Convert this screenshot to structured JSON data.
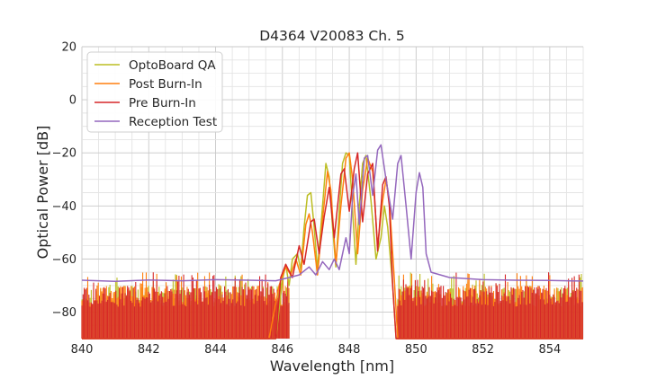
{
  "chart_data": {
    "type": "line",
    "title": "D4364 V20083 Ch. 5",
    "xlabel": "Wavelength [nm]",
    "ylabel": "Optical Power [dB]",
    "xlim": [
      840,
      855
    ],
    "ylim": [
      -90,
      20
    ],
    "xticks": [
      "840",
      "842",
      "844",
      "846",
      "848",
      "850",
      "852",
      "854"
    ],
    "yticks": [
      "20",
      "0",
      "−20",
      "−40",
      "−60",
      "−80"
    ],
    "grid": true,
    "legend_position": "top-left",
    "series": [
      {
        "name": "OptoBoard QA",
        "color": "#bcbd22",
        "noise_floor": true,
        "points": [
          [
            840,
            -90
          ],
          [
            845.8,
            -90
          ],
          [
            846.0,
            -68
          ],
          [
            846.1,
            -62
          ],
          [
            846.2,
            -70
          ],
          [
            846.3,
            -60
          ],
          [
            846.45,
            -58
          ],
          [
            846.55,
            -64
          ],
          [
            846.65,
            -48
          ],
          [
            846.75,
            -36
          ],
          [
            846.85,
            -35
          ],
          [
            846.95,
            -48
          ],
          [
            847.05,
            -64
          ],
          [
            847.15,
            -48
          ],
          [
            847.3,
            -24
          ],
          [
            847.4,
            -29
          ],
          [
            847.5,
            -48
          ],
          [
            847.6,
            -63
          ],
          [
            847.7,
            -42
          ],
          [
            847.8,
            -24
          ],
          [
            847.9,
            -20
          ],
          [
            848.0,
            -21
          ],
          [
            848.1,
            -42
          ],
          [
            848.2,
            -62
          ],
          [
            848.3,
            -40
          ],
          [
            848.4,
            -24
          ],
          [
            848.5,
            -21
          ],
          [
            848.65,
            -38
          ],
          [
            848.8,
            -60
          ],
          [
            848.95,
            -52
          ],
          [
            849.05,
            -40
          ],
          [
            849.15,
            -48
          ],
          [
            849.3,
            -70
          ],
          [
            849.4,
            -90
          ],
          [
            855,
            -90
          ]
        ]
      },
      {
        "name": "Post Burn-In",
        "color": "#ff7f0e",
        "noise_floor": true,
        "points": [
          [
            840,
            -90
          ],
          [
            845.6,
            -90
          ],
          [
            845.9,
            -70
          ],
          [
            846.1,
            -63
          ],
          [
            846.25,
            -66
          ],
          [
            846.4,
            -60
          ],
          [
            846.55,
            -66
          ],
          [
            846.7,
            -47
          ],
          [
            846.8,
            -43
          ],
          [
            846.9,
            -50
          ],
          [
            847.05,
            -66
          ],
          [
            847.2,
            -45
          ],
          [
            847.35,
            -27
          ],
          [
            847.45,
            -34
          ],
          [
            847.6,
            -62
          ],
          [
            847.75,
            -40
          ],
          [
            847.9,
            -22
          ],
          [
            848.0,
            -20
          ],
          [
            848.1,
            -30
          ],
          [
            848.25,
            -58
          ],
          [
            848.4,
            -34
          ],
          [
            848.55,
            -22
          ],
          [
            848.7,
            -27
          ],
          [
            848.85,
            -55
          ],
          [
            849.0,
            -38
          ],
          [
            849.1,
            -30
          ],
          [
            849.2,
            -38
          ],
          [
            849.35,
            -68
          ],
          [
            849.45,
            -90
          ],
          [
            855,
            -90
          ]
        ]
      },
      {
        "name": "Pre Burn-In",
        "color": "#d62728",
        "noise_floor": true,
        "points": [
          [
            840,
            -90
          ],
          [
            845.8,
            -90
          ],
          [
            845.95,
            -67
          ],
          [
            846.1,
            -62
          ],
          [
            846.3,
            -67
          ],
          [
            846.5,
            -55
          ],
          [
            846.65,
            -62
          ],
          [
            846.85,
            -46
          ],
          [
            846.95,
            -45
          ],
          [
            847.1,
            -58
          ],
          [
            847.25,
            -44
          ],
          [
            847.4,
            -33
          ],
          [
            847.55,
            -52
          ],
          [
            847.75,
            -28
          ],
          [
            847.85,
            -26
          ],
          [
            848.0,
            -42
          ],
          [
            848.15,
            -26
          ],
          [
            848.25,
            -20
          ],
          [
            848.4,
            -46
          ],
          [
            848.55,
            -28
          ],
          [
            848.7,
            -24
          ],
          [
            848.85,
            -57
          ],
          [
            849.0,
            -32
          ],
          [
            849.1,
            -29
          ],
          [
            849.2,
            -40
          ],
          [
            849.3,
            -70
          ],
          [
            849.4,
            -90
          ],
          [
            855,
            -90
          ]
        ]
      },
      {
        "name": "Reception Test",
        "color": "#9467bd",
        "noise_floor": false,
        "points": [
          [
            840,
            -68
          ],
          [
            841,
            -68.4
          ],
          [
            842,
            -67.9
          ],
          [
            843,
            -68.2
          ],
          [
            844,
            -67.8
          ],
          [
            845,
            -68.0
          ],
          [
            845.8,
            -68.2
          ],
          [
            846.2,
            -67
          ],
          [
            846.5,
            -66
          ],
          [
            846.8,
            -63
          ],
          [
            847.0,
            -66
          ],
          [
            847.2,
            -61
          ],
          [
            847.4,
            -64
          ],
          [
            847.55,
            -60
          ],
          [
            847.7,
            -64
          ],
          [
            847.9,
            -52
          ],
          [
            848.0,
            -58
          ],
          [
            848.1,
            -36
          ],
          [
            848.2,
            -28
          ],
          [
            848.3,
            -47
          ],
          [
            848.45,
            -22
          ],
          [
            848.55,
            -21
          ],
          [
            848.7,
            -36
          ],
          [
            848.85,
            -19
          ],
          [
            848.95,
            -17
          ],
          [
            849.1,
            -30
          ],
          [
            849.3,
            -45
          ],
          [
            849.45,
            -24
          ],
          [
            849.55,
            -21
          ],
          [
            849.7,
            -40
          ],
          [
            849.85,
            -60
          ],
          [
            850.0,
            -35
          ],
          [
            850.1,
            -27.5
          ],
          [
            850.2,
            -33
          ],
          [
            850.3,
            -58
          ],
          [
            850.45,
            -65
          ],
          [
            851,
            -67
          ],
          [
            852,
            -67.8
          ],
          [
            853,
            -68.0
          ],
          [
            854,
            -68.1
          ],
          [
            855,
            -68.3
          ]
        ]
      }
    ]
  }
}
